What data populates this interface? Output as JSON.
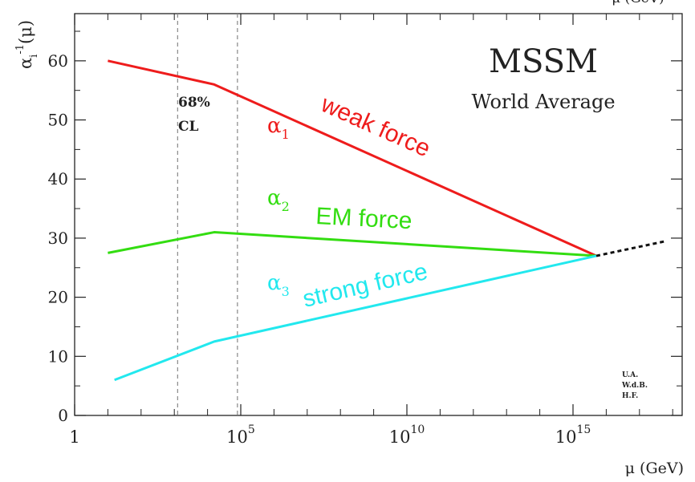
{
  "chart_data": {
    "type": "line",
    "title": "MSSM",
    "subtitle": "World Average",
    "xlabel": "μ (GeV)",
    "ylabel_main": "α",
    "ylabel_sub": "i",
    "ylabel_sup": "-1",
    "ylabel_tail": "(μ)",
    "x_scale": "log10",
    "xlim_log10": [
      0,
      18
    ],
    "ylim": [
      0,
      65
    ],
    "x_ticks": [
      {
        "base": "1",
        "exp": ""
      },
      {
        "base": "10",
        "exp": "5"
      },
      {
        "base": "10",
        "exp": "10"
      },
      {
        "base": "10",
        "exp": "15"
      }
    ],
    "y_ticks": [
      "0",
      "10",
      "20",
      "30",
      "40",
      "50",
      "60"
    ],
    "cl_band": {
      "low_log10": 3.1,
      "high_log10": 4.9,
      "label_line1": "68%",
      "label_line2": "CL"
    },
    "series": [
      {
        "name": "α1",
        "greek": "α",
        "sub": "1",
        "annotation": "weak force",
        "color": "#ee1c1c",
        "log10_mu": [
          1,
          4.2,
          15.7
        ],
        "values": [
          60,
          56,
          27
        ]
      },
      {
        "name": "α2",
        "greek": "α",
        "sub": "2",
        "annotation": "EM force",
        "color": "#33dd11",
        "log10_mu": [
          1,
          4.2,
          15.7
        ],
        "values": [
          27.5,
          31,
          27
        ]
      },
      {
        "name": "α3",
        "greek": "α",
        "sub": "3",
        "annotation": "strong force",
        "color": "#22e8ee",
        "log10_mu": [
          1.2,
          4.2,
          15.7
        ],
        "values": [
          6,
          12.5,
          27
        ]
      }
    ],
    "extrapolation": {
      "log10_mu": [
        15.7,
        17.8
      ],
      "values": [
        27,
        29.5
      ],
      "color": "#111111"
    },
    "credit": [
      "U.A.",
      "W.d.B.",
      "H.F."
    ]
  }
}
